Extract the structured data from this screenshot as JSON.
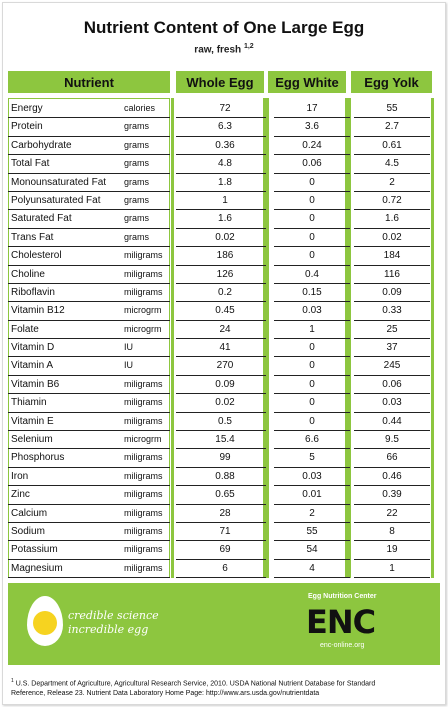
{
  "title": "Nutrient Content of One Large Egg",
  "subtitle": "raw, fresh",
  "subtitle_sup": "1,2",
  "headers": {
    "nutrient": "Nutrient",
    "whole": "Whole Egg",
    "white": "Egg White",
    "yolk": "Egg Yolk"
  },
  "rows": [
    {
      "nutrient": "Energy",
      "unit": "calories",
      "whole": "72",
      "white": "17",
      "yolk": "55"
    },
    {
      "nutrient": "Protein",
      "unit": "grams",
      "whole": "6.3",
      "white": "3.6",
      "yolk": "2.7"
    },
    {
      "nutrient": "Carbohydrate",
      "unit": "grams",
      "whole": "0.36",
      "white": "0.24",
      "yolk": "0.61"
    },
    {
      "nutrient": "Total Fat",
      "unit": "grams",
      "whole": "4.8",
      "white": "0.06",
      "yolk": "4.5"
    },
    {
      "nutrient": "Monounsaturated Fat",
      "unit": "grams",
      "whole": "1.8",
      "white": "0",
      "yolk": "2"
    },
    {
      "nutrient": "Polyunsaturated Fat",
      "unit": "grams",
      "whole": "1",
      "white": "0",
      "yolk": "0.72"
    },
    {
      "nutrient": "Saturated Fat",
      "unit": "grams",
      "whole": "1.6",
      "white": "0",
      "yolk": "1.6"
    },
    {
      "nutrient": "Trans Fat",
      "unit": "grams",
      "whole": "0.02",
      "white": "0",
      "yolk": "0.02"
    },
    {
      "nutrient": "Cholesterol",
      "unit": "miligrams",
      "whole": "186",
      "white": "0",
      "yolk": "184"
    },
    {
      "nutrient": "Choline",
      "unit": "miligrams",
      "whole": "126",
      "white": "0.4",
      "yolk": "116"
    },
    {
      "nutrient": "Riboflavin",
      "unit": "miligrams",
      "whole": "0.2",
      "white": "0.15",
      "yolk": "0.09"
    },
    {
      "nutrient": "Vitamin B12",
      "unit": "microgrm",
      "whole": "0.45",
      "white": "0.03",
      "yolk": "0.33"
    },
    {
      "nutrient": "Folate",
      "unit": "microgrm",
      "whole": "24",
      "white": "1",
      "yolk": "25"
    },
    {
      "nutrient": "Vitamin D",
      "unit": "IU",
      "whole": "41",
      "white": "0",
      "yolk": "37"
    },
    {
      "nutrient": "Vitamin A",
      "unit": "IU",
      "whole": "270",
      "white": "0",
      "yolk": "245"
    },
    {
      "nutrient": "Vitamin B6",
      "unit": "miligrams",
      "whole": "0.09",
      "white": "0",
      "yolk": "0.06"
    },
    {
      "nutrient": "Thiamin",
      "unit": "miligrams",
      "whole": "0.02",
      "white": "0",
      "yolk": "0.03"
    },
    {
      "nutrient": "Vitamin E",
      "unit": "miligrams",
      "whole": "0.5",
      "white": "0",
      "yolk": "0.44"
    },
    {
      "nutrient": "Selenium",
      "unit": "microgrm",
      "whole": "15.4",
      "white": "6.6",
      "yolk": "9.5"
    },
    {
      "nutrient": "Phosphorus",
      "unit": "miligrams",
      "whole": "99",
      "white": "5",
      "yolk": "66"
    },
    {
      "nutrient": "Iron",
      "unit": "miligrams",
      "whole": "0.88",
      "white": "0.03",
      "yolk": "0.46"
    },
    {
      "nutrient": "Zinc",
      "unit": "miligrams",
      "whole": "0.65",
      "white": "0.01",
      "yolk": "0.39"
    },
    {
      "nutrient": "Calcium",
      "unit": "miligrams",
      "whole": "28",
      "white": "2",
      "yolk": "22"
    },
    {
      "nutrient": "Sodium",
      "unit": "miligrams",
      "whole": "71",
      "white": "55",
      "yolk": "8"
    },
    {
      "nutrient": "Potassium",
      "unit": "miligrams",
      "whole": "69",
      "white": "54",
      "yolk": "19"
    },
    {
      "nutrient": "Magnesium",
      "unit": "miligrams",
      "whole": "6",
      "white": "4",
      "yolk": "1"
    }
  ],
  "banner": {
    "tagline_1": "credible science",
    "tagline_2": "incredible egg",
    "org_name": "Egg Nutrition Center",
    "logo_text": "ENC",
    "url": "enc-online.org"
  },
  "footnote": {
    "sup": "1",
    "line1": "U.S. Department of Agriculture, Agricultural Research Service, 2010.  USDA National Nutrient Database for Standard",
    "line2": "Reference, Release 23. Nutrient Data Laboratory Home Page: http://www.ars.usda.gov/nutrientdata"
  },
  "colors": {
    "accent_green": "#8dc63f",
    "yolk_yellow": "#f6d320"
  }
}
